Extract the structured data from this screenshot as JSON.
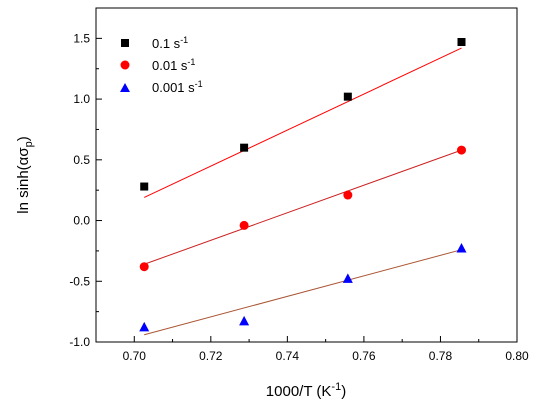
{
  "chart_data": {
    "type": "scatter",
    "title": "",
    "xlabel": "1000/T (K",
    "xlabel_sup": "-1",
    "xlabel_suffix": ")",
    "ylabel": "ln sinh(ασ",
    "ylabel_sub": "p",
    "ylabel_suffix": ")",
    "xlim": [
      0.69,
      0.8
    ],
    "ylim": [
      -1.0,
      1.75
    ],
    "xticks": [
      "0.70",
      "0.72",
      "0.74",
      "0.76",
      "0.78",
      "0.80"
    ],
    "xtick_values": [
      0.7,
      0.72,
      0.74,
      0.76,
      0.78,
      0.8
    ],
    "yticks": [
      "-1.0",
      "-0.5",
      "0.0",
      "0.5",
      "1.0",
      "1.5"
    ],
    "ytick_values": [
      -1.0,
      -0.5,
      0.0,
      0.5,
      1.0,
      1.5
    ],
    "grid": false,
    "legend_position": "top-left",
    "series": [
      {
        "name": "0.1 s",
        "name_sup": "-1",
        "marker": "square",
        "color": "#000000",
        "fit_color": "#ff0000",
        "x": [
          0.7026,
          0.7287,
          0.7558,
          0.7855
        ],
        "y": [
          0.28,
          0.6,
          1.02,
          1.47
        ],
        "fit": [
          [
            0.7026,
            0.19
          ],
          [
            0.7855,
            1.42
          ]
        ]
      },
      {
        "name": "0.01 s",
        "name_sup": "-1",
        "marker": "circle",
        "color": "#ff0000",
        "fit_color": "#cc2222",
        "x": [
          0.7026,
          0.7287,
          0.7558,
          0.7855
        ],
        "y": [
          -0.38,
          -0.04,
          0.21,
          0.58
        ],
        "fit": [
          [
            0.7026,
            -0.36
          ],
          [
            0.7855,
            0.58
          ]
        ]
      },
      {
        "name": "0.001 s",
        "name_sup": "-1",
        "marker": "triangle",
        "color": "#0000ff",
        "fit_color": "#aa5533",
        "x": [
          0.7026,
          0.7287,
          0.7558,
          0.7855
        ],
        "y": [
          -0.88,
          -0.83,
          -0.48,
          -0.23
        ],
        "fit": [
          [
            0.7026,
            -0.94
          ],
          [
            0.7855,
            -0.24
          ]
        ]
      }
    ]
  }
}
